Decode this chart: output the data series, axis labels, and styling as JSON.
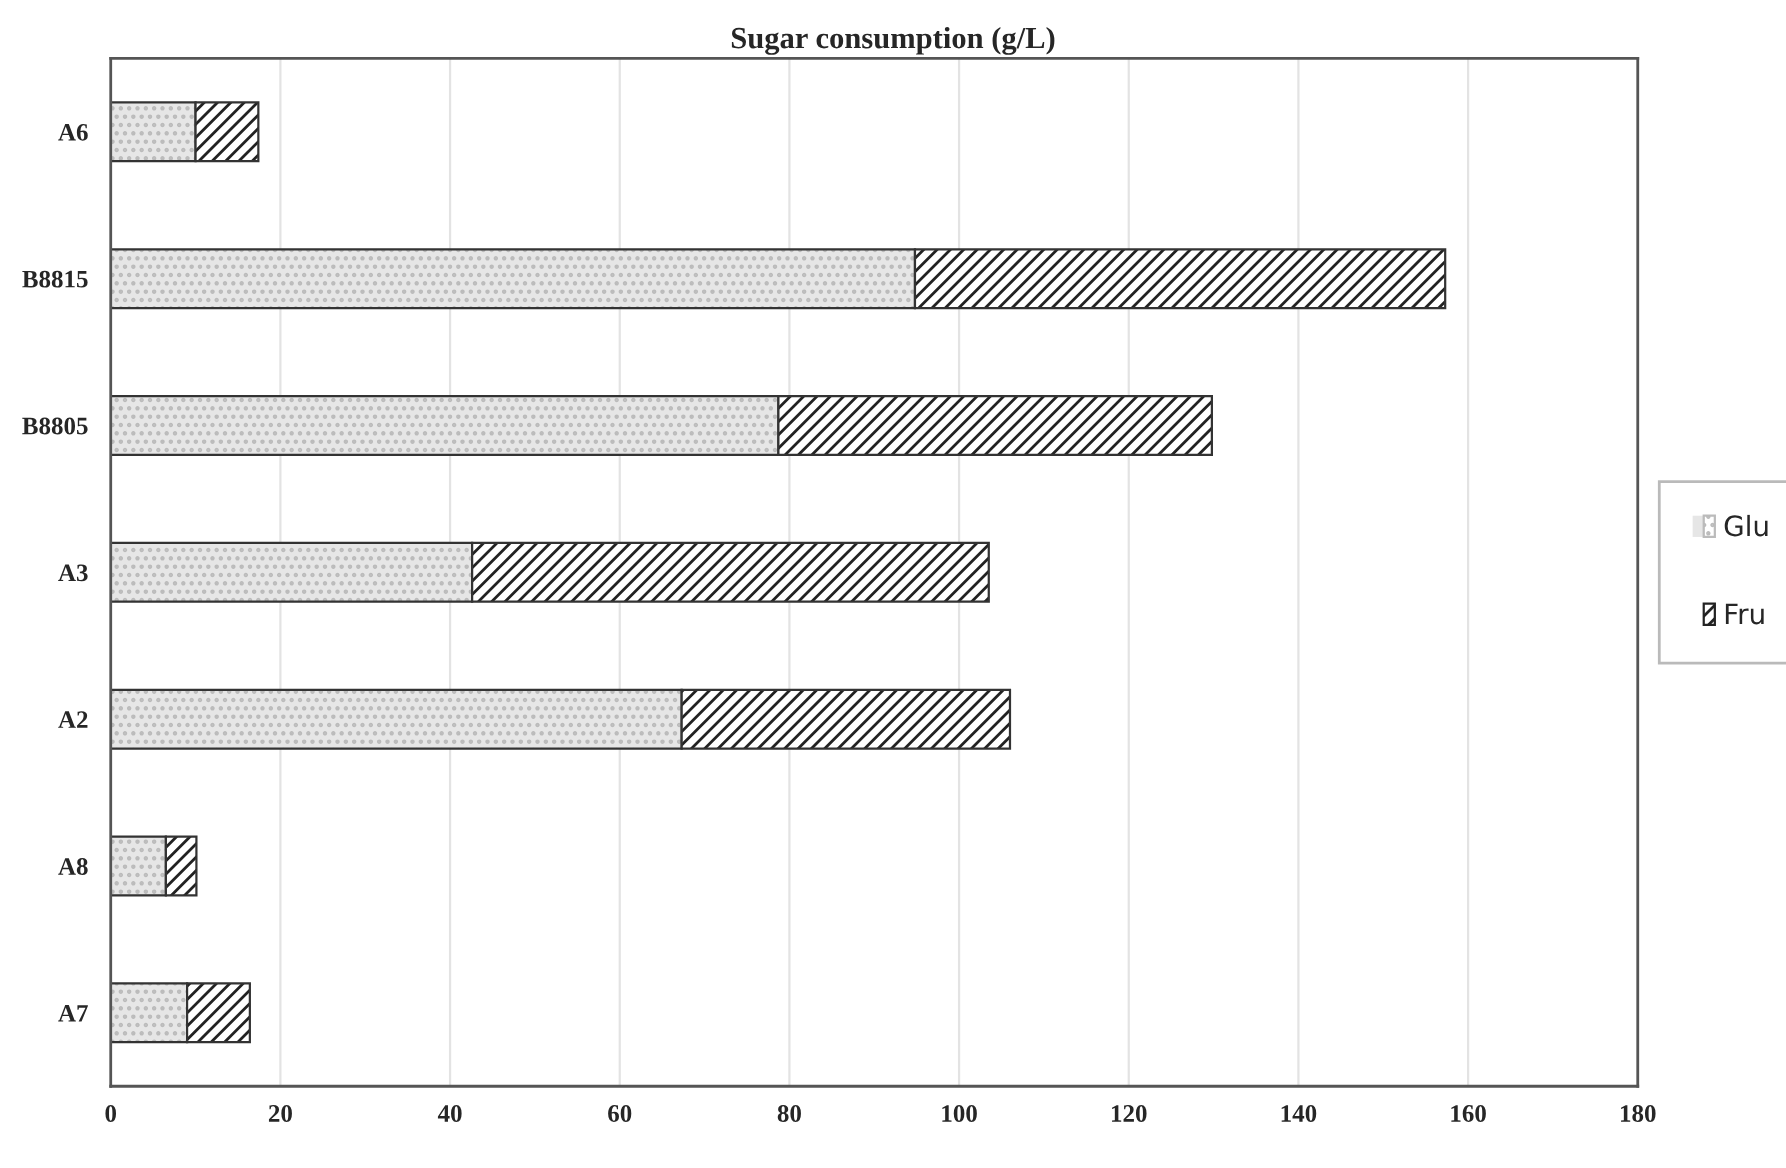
{
  "chart_data": {
    "type": "bar",
    "orientation": "horizontal",
    "stacked": true,
    "title": "Sugar consumption (g/L)",
    "categories": [
      "A6",
      "B8815",
      "B8805",
      "A3",
      "A2",
      "A8",
      "A7"
    ],
    "series": [
      {
        "name": "Glu",
        "color": "#e6e6e6",
        "values": [
          10.0,
          94.8,
          78.7,
          42.6,
          67.3,
          6.5,
          9.0
        ]
      },
      {
        "name": "Fru",
        "color": "#ffffff",
        "values": [
          7.4,
          62.5,
          51.1,
          60.9,
          38.7,
          3.6,
          7.4
        ]
      }
    ],
    "xlim": [
      0,
      180
    ],
    "xticks": [
      0,
      20,
      40,
      60,
      80,
      100,
      120,
      140,
      160,
      180
    ],
    "grid": "x",
    "legend": "right"
  }
}
